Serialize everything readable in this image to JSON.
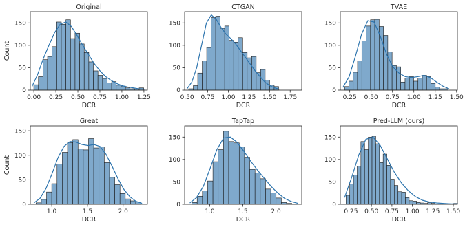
{
  "chart_data": [
    {
      "type": "bar",
      "title": "Original",
      "xlabel": "DCR",
      "ylabel": "Count",
      "xlim": [
        -0.04,
        1.29
      ],
      "ylim": [
        0,
        175
      ],
      "xticks": [
        0.0,
        0.25,
        0.5,
        0.75,
        1.0,
        1.25
      ],
      "xtick_labels": [
        "0.00",
        "0.25",
        "0.50",
        "0.75",
        "1.00",
        "1.25"
      ],
      "yticks": [
        0,
        50,
        100,
        150
      ],
      "bin_start": 0.0,
      "bin_width": 0.052,
      "values": [
        12,
        30,
        68,
        75,
        97,
        152,
        147,
        157,
        115,
        127,
        103,
        84,
        63,
        43,
        33,
        26,
        16,
        19,
        11,
        9,
        5,
        3,
        2,
        5
      ],
      "kde": [
        8,
        35,
        70,
        100,
        128,
        147,
        152,
        142,
        122,
        100,
        80,
        60,
        44,
        31,
        22,
        15,
        10,
        7,
        5,
        3,
        2
      ]
    },
    {
      "type": "bar",
      "title": "CTGAN",
      "xlabel": "DCR",
      "ylabel": "",
      "xlim": [
        0.47,
        1.89
      ],
      "ylim": [
        0,
        175
      ],
      "xticks": [
        0.5,
        0.75,
        1.0,
        1.25,
        1.5,
        1.75
      ],
      "xtick_labels": [
        "0.50",
        "0.75",
        "1.00",
        "1.25",
        "1.50",
        "1.75"
      ],
      "yticks": [
        0,
        50,
        100,
        150
      ],
      "bin_start": 0.52,
      "bin_width": 0.0545,
      "values": [
        3,
        10,
        38,
        65,
        95,
        162,
        165,
        138,
        143,
        111,
        107,
        117,
        84,
        72,
        75,
        39,
        46,
        22,
        11,
        8
      ],
      "kde": [
        3,
        18,
        50,
        100,
        150,
        168,
        158,
        140,
        125,
        115,
        103,
        88,
        73,
        58,
        43,
        30,
        18,
        10,
        5,
        2
      ]
    },
    {
      "type": "bar",
      "title": "TVAE",
      "xlabel": "DCR",
      "ylabel": "",
      "xlim": [
        0.14,
        1.51
      ],
      "ylim": [
        0,
        175
      ],
      "xticks": [
        0.25,
        0.5,
        0.75,
        1.0,
        1.25,
        1.5
      ],
      "xtick_labels": [
        "0.25",
        "0.50",
        "0.75",
        "1.00",
        "1.25",
        "1.50"
      ],
      "yticks": [
        0,
        50,
        100,
        150
      ],
      "bin_start": 0.19,
      "bin_width": 0.0505,
      "values": [
        8,
        20,
        40,
        65,
        110,
        143,
        157,
        158,
        142,
        122,
        85,
        55,
        52,
        18,
        27,
        30,
        20,
        27,
        33,
        30,
        15,
        7,
        3,
        3
      ],
      "kde": [
        6,
        30,
        75,
        125,
        155,
        152,
        120,
        80,
        52,
        38,
        30,
        28,
        30,
        33,
        28,
        18,
        9,
        3
      ]
    },
    {
      "type": "bar",
      "title": "Great",
      "xlabel": "DCR",
      "ylabel": "Count",
      "xlim": [
        0.7,
        2.34
      ],
      "ylim": [
        0,
        160
      ],
      "xticks": [
        1.0,
        1.5,
        2.0
      ],
      "xtick_labels": [
        "1.0",
        "1.5",
        "2.0"
      ],
      "yticks": [
        0,
        50,
        100,
        150
      ],
      "bin_start": 0.78,
      "bin_width": 0.0735,
      "values": [
        3,
        10,
        25,
        42,
        82,
        106,
        126,
        132,
        113,
        111,
        134,
        115,
        117,
        85,
        55,
        40,
        22,
        11,
        7,
        5
      ],
      "kde": [
        3,
        12,
        32,
        62,
        95,
        118,
        128,
        127,
        122,
        120,
        122,
        118,
        102,
        78,
        52,
        30,
        15,
        6,
        2
      ]
    },
    {
      "type": "bar",
      "title": "TapTap",
      "xlabel": "DCR",
      "ylabel": "",
      "xlim": [
        0.62,
        2.39
      ],
      "ylim": [
        0,
        175
      ],
      "xticks": [
        1.0,
        1.5,
        2.0
      ],
      "xtick_labels": [
        "1.0",
        "1.5",
        "2.0"
      ],
      "yticks": [
        0,
        50,
        100,
        150
      ],
      "bin_start": 0.73,
      "bin_width": 0.0795,
      "values": [
        4,
        18,
        30,
        52,
        95,
        122,
        163,
        140,
        137,
        128,
        105,
        78,
        70,
        57,
        34,
        25,
        14,
        4,
        2,
        1
      ],
      "kde": [
        3,
        15,
        40,
        80,
        122,
        148,
        150,
        138,
        118,
        96,
        76,
        58,
        40,
        25,
        13,
        6,
        2
      ]
    },
    {
      "type": "bar",
      "title": "Pred-LLM (ours)",
      "xlabel": "DCR",
      "ylabel": "",
      "xlim": [
        0.12,
        1.55
      ],
      "ylim": [
        0,
        175
      ],
      "xticks": [
        0.25,
        0.5,
        0.75,
        1.0,
        1.25,
        1.5
      ],
      "xtick_labels": [
        "0.25",
        "0.50",
        "0.75",
        "1.00",
        "1.25",
        "1.50"
      ],
      "yticks": [
        0,
        50,
        100,
        150
      ],
      "bin_start": 0.19,
      "bin_width": 0.0453,
      "values": [
        20,
        45,
        65,
        85,
        140,
        122,
        150,
        152,
        135,
        93,
        112,
        87,
        56,
        42,
        28,
        27,
        15,
        8,
        7,
        4,
        3,
        2,
        4,
        2,
        1,
        1,
        1,
        1,
        1,
        2
      ],
      "kde": [
        15,
        60,
        110,
        145,
        150,
        132,
        102,
        72,
        48,
        30,
        17,
        9,
        5,
        3,
        2,
        1,
        1
      ]
    }
  ]
}
